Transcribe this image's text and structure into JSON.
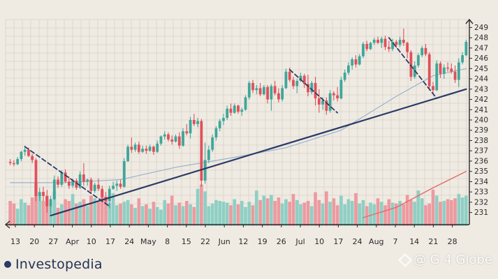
{
  "chart_data": {
    "type": "candlestick",
    "x_tick_labels": [
      "13",
      "20",
      "27",
      "Apr",
      "10",
      "17",
      "24",
      "May",
      "8",
      "15",
      "22",
      "Jun",
      "12",
      "19",
      "26",
      "Jul",
      "10",
      "17",
      "24",
      "Aug",
      "7",
      "14",
      "21",
      "28"
    ],
    "y_tick_labels": [
      "231",
      "232",
      "233",
      "234",
      "235",
      "236",
      "237",
      "238",
      "239",
      "240",
      "241",
      "242",
      "243",
      "244",
      "245",
      "246",
      "247",
      "248",
      "249"
    ],
    "ylim": [
      230.5,
      249.5
    ],
    "grid": true,
    "colors": {
      "background": "#efebe3",
      "grid": "#d9d2c7",
      "up": "#3fa69a",
      "down": "#e0505a",
      "volume_up": "#8fcfc4",
      "volume_down": "#ec9aa0",
      "trendline": "#2b3a66",
      "ma_slow": "#e46a6a",
      "ma_fast": "#9ab2cc",
      "axis": "#2b2b2b"
    },
    "candles": [
      {
        "o": 235.9,
        "h": 236.2,
        "l": 235.6,
        "c": 235.8
      },
      {
        "o": 235.8,
        "h": 236.1,
        "l": 235.5,
        "c": 235.7
      },
      {
        "o": 235.7,
        "h": 236.4,
        "l": 235.6,
        "c": 236.2
      },
      {
        "o": 236.2,
        "h": 237.0,
        "l": 236.0,
        "c": 236.9
      },
      {
        "o": 236.9,
        "h": 237.5,
        "l": 236.5,
        "c": 237.1
      },
      {
        "o": 237.1,
        "h": 237.3,
        "l": 236.4,
        "c": 236.5
      },
      {
        "o": 236.5,
        "h": 236.7,
        "l": 235.8,
        "c": 236.1
      },
      {
        "o": 236.1,
        "h": 236.3,
        "l": 232.1,
        "c": 232.6
      },
      {
        "o": 232.6,
        "h": 233.4,
        "l": 232.1,
        "c": 233.0
      },
      {
        "o": 233.0,
        "h": 233.5,
        "l": 232.1,
        "c": 232.6
      },
      {
        "o": 232.6,
        "h": 233.2,
        "l": 231.0,
        "c": 231.6
      },
      {
        "o": 231.6,
        "h": 232.6,
        "l": 230.9,
        "c": 232.3
      },
      {
        "o": 232.3,
        "h": 234.6,
        "l": 232.2,
        "c": 234.2
      },
      {
        "o": 234.2,
        "h": 234.5,
        "l": 233.4,
        "c": 233.7
      },
      {
        "o": 233.7,
        "h": 235.1,
        "l": 233.5,
        "c": 234.9
      },
      {
        "o": 234.9,
        "h": 235.2,
        "l": 233.9,
        "c": 234.0
      },
      {
        "o": 234.0,
        "h": 234.5,
        "l": 233.3,
        "c": 233.6
      },
      {
        "o": 233.6,
        "h": 234.3,
        "l": 233.4,
        "c": 234.1
      },
      {
        "o": 234.1,
        "h": 234.3,
        "l": 233.2,
        "c": 233.4
      },
      {
        "o": 233.4,
        "h": 235.0,
        "l": 233.3,
        "c": 234.7
      },
      {
        "o": 234.7,
        "h": 235.8,
        "l": 233.6,
        "c": 234.0
      },
      {
        "o": 234.0,
        "h": 234.3,
        "l": 233.6,
        "c": 234.2
      },
      {
        "o": 234.2,
        "h": 234.4,
        "l": 232.8,
        "c": 233.1
      },
      {
        "o": 233.1,
        "h": 233.9,
        "l": 232.9,
        "c": 233.7
      },
      {
        "o": 233.7,
        "h": 234.3,
        "l": 233.1,
        "c": 233.3
      },
      {
        "o": 233.3,
        "h": 233.6,
        "l": 232.2,
        "c": 232.5
      },
      {
        "o": 232.5,
        "h": 233.0,
        "l": 231.9,
        "c": 232.1
      },
      {
        "o": 232.1,
        "h": 233.6,
        "l": 231.4,
        "c": 233.3
      },
      {
        "o": 233.3,
        "h": 234.0,
        "l": 233.2,
        "c": 233.6
      },
      {
        "o": 233.6,
        "h": 234.1,
        "l": 233.1,
        "c": 233.8
      },
      {
        "o": 233.8,
        "h": 234.2,
        "l": 233.3,
        "c": 233.5
      },
      {
        "o": 233.5,
        "h": 236.3,
        "l": 233.4,
        "c": 236.0
      },
      {
        "o": 236.0,
        "h": 237.6,
        "l": 235.9,
        "c": 237.4
      },
      {
        "o": 237.4,
        "h": 238.3,
        "l": 236.8,
        "c": 237.1
      },
      {
        "o": 237.1,
        "h": 237.8,
        "l": 236.9,
        "c": 237.6
      },
      {
        "o": 237.6,
        "h": 237.9,
        "l": 236.7,
        "c": 236.9
      },
      {
        "o": 236.9,
        "h": 237.5,
        "l": 236.8,
        "c": 237.2
      },
      {
        "o": 237.2,
        "h": 237.5,
        "l": 236.7,
        "c": 237.0
      },
      {
        "o": 237.0,
        "h": 237.6,
        "l": 236.9,
        "c": 237.4
      },
      {
        "o": 237.4,
        "h": 237.5,
        "l": 236.6,
        "c": 236.9
      },
      {
        "o": 236.9,
        "h": 238.0,
        "l": 236.8,
        "c": 237.7
      },
      {
        "o": 237.7,
        "h": 238.5,
        "l": 237.5,
        "c": 238.4
      },
      {
        "o": 238.4,
        "h": 238.9,
        "l": 238.1,
        "c": 238.6
      },
      {
        "o": 238.6,
        "h": 238.8,
        "l": 237.9,
        "c": 238.1
      },
      {
        "o": 238.1,
        "h": 238.5,
        "l": 237.6,
        "c": 237.9
      },
      {
        "o": 237.9,
        "h": 238.6,
        "l": 237.8,
        "c": 238.4
      },
      {
        "o": 238.4,
        "h": 238.8,
        "l": 237.2,
        "c": 237.5
      },
      {
        "o": 237.5,
        "h": 239.2,
        "l": 237.4,
        "c": 238.9
      },
      {
        "o": 238.9,
        "h": 239.6,
        "l": 238.5,
        "c": 238.7
      },
      {
        "o": 238.7,
        "h": 240.3,
        "l": 238.2,
        "c": 240.0
      },
      {
        "o": 240.0,
        "h": 240.6,
        "l": 239.4,
        "c": 239.6
      },
      {
        "o": 239.6,
        "h": 240.2,
        "l": 239.3,
        "c": 239.9
      },
      {
        "o": 239.9,
        "h": 240.1,
        "l": 233.5,
        "c": 234.1
      },
      {
        "o": 234.1,
        "h": 237.8,
        "l": 233.8,
        "c": 236.1
      },
      {
        "o": 236.1,
        "h": 237.5,
        "l": 235.8,
        "c": 237.1
      },
      {
        "o": 237.1,
        "h": 238.6,
        "l": 236.9,
        "c": 238.3
      },
      {
        "o": 238.3,
        "h": 239.4,
        "l": 238.0,
        "c": 239.2
      },
      {
        "o": 239.2,
        "h": 240.1,
        "l": 238.9,
        "c": 239.9
      },
      {
        "o": 239.9,
        "h": 240.6,
        "l": 239.5,
        "c": 240.2
      },
      {
        "o": 240.2,
        "h": 241.4,
        "l": 240.0,
        "c": 241.1
      },
      {
        "o": 241.1,
        "h": 241.6,
        "l": 240.4,
        "c": 240.7
      },
      {
        "o": 240.7,
        "h": 241.6,
        "l": 240.6,
        "c": 241.4
      },
      {
        "o": 241.4,
        "h": 241.5,
        "l": 240.6,
        "c": 240.8
      },
      {
        "o": 240.8,
        "h": 241.2,
        "l": 240.4,
        "c": 241.0
      },
      {
        "o": 241.0,
        "h": 242.4,
        "l": 240.9,
        "c": 242.2
      },
      {
        "o": 242.2,
        "h": 243.8,
        "l": 242.0,
        "c": 243.6
      },
      {
        "o": 243.6,
        "h": 243.9,
        "l": 242.6,
        "c": 242.9
      },
      {
        "o": 242.9,
        "h": 243.4,
        "l": 242.5,
        "c": 243.1
      },
      {
        "o": 243.1,
        "h": 243.6,
        "l": 242.3,
        "c": 242.5
      },
      {
        "o": 242.5,
        "h": 243.4,
        "l": 242.4,
        "c": 243.2
      },
      {
        "o": 243.2,
        "h": 243.4,
        "l": 241.6,
        "c": 242.0
      },
      {
        "o": 242.0,
        "h": 243.5,
        "l": 240.9,
        "c": 243.3
      },
      {
        "o": 243.3,
        "h": 243.8,
        "l": 242.4,
        "c": 242.6
      },
      {
        "o": 242.6,
        "h": 243.1,
        "l": 241.7,
        "c": 242.0
      },
      {
        "o": 242.0,
        "h": 243.4,
        "l": 241.8,
        "c": 243.1
      },
      {
        "o": 243.1,
        "h": 245.0,
        "l": 243.0,
        "c": 244.7
      },
      {
        "o": 244.7,
        "h": 245.1,
        "l": 243.7,
        "c": 243.9
      },
      {
        "o": 243.9,
        "h": 244.2,
        "l": 243.0,
        "c": 243.3
      },
      {
        "o": 243.3,
        "h": 244.0,
        "l": 242.6,
        "c": 243.8
      },
      {
        "o": 243.8,
        "h": 244.6,
        "l": 243.7,
        "c": 244.3
      },
      {
        "o": 244.3,
        "h": 244.5,
        "l": 243.1,
        "c": 243.5
      },
      {
        "o": 243.5,
        "h": 244.4,
        "l": 242.3,
        "c": 242.7
      },
      {
        "o": 242.7,
        "h": 243.8,
        "l": 242.5,
        "c": 243.6
      },
      {
        "o": 243.6,
        "h": 244.2,
        "l": 241.4,
        "c": 242.1
      },
      {
        "o": 242.1,
        "h": 243.0,
        "l": 240.7,
        "c": 241.5
      },
      {
        "o": 241.5,
        "h": 242.2,
        "l": 241.0,
        "c": 241.9
      },
      {
        "o": 241.9,
        "h": 242.2,
        "l": 240.5,
        "c": 240.9
      },
      {
        "o": 240.9,
        "h": 242.9,
        "l": 240.7,
        "c": 242.6
      },
      {
        "o": 242.6,
        "h": 242.8,
        "l": 241.9,
        "c": 242.4
      },
      {
        "o": 242.4,
        "h": 243.2,
        "l": 241.8,
        "c": 242.1
      },
      {
        "o": 242.1,
        "h": 244.2,
        "l": 242.0,
        "c": 243.9
      },
      {
        "o": 243.9,
        "h": 244.9,
        "l": 243.7,
        "c": 244.6
      },
      {
        "o": 244.6,
        "h": 245.6,
        "l": 244.4,
        "c": 245.3
      },
      {
        "o": 245.3,
        "h": 246.1,
        "l": 244.9,
        "c": 245.9
      },
      {
        "o": 245.9,
        "h": 246.3,
        "l": 245.1,
        "c": 245.4
      },
      {
        "o": 245.4,
        "h": 246.4,
        "l": 245.3,
        "c": 246.2
      },
      {
        "o": 246.2,
        "h": 247.6,
        "l": 246.0,
        "c": 247.4
      },
      {
        "o": 247.4,
        "h": 247.7,
        "l": 246.7,
        "c": 246.9
      },
      {
        "o": 246.9,
        "h": 247.6,
        "l": 246.8,
        "c": 247.5
      },
      {
        "o": 247.5,
        "h": 248.0,
        "l": 247.3,
        "c": 247.8
      },
      {
        "o": 247.8,
        "h": 248.1,
        "l": 247.4,
        "c": 247.5
      },
      {
        "o": 247.5,
        "h": 248.1,
        "l": 247.0,
        "c": 247.9
      },
      {
        "o": 247.9,
        "h": 248.2,
        "l": 246.8,
        "c": 247.1
      },
      {
        "o": 247.1,
        "h": 247.7,
        "l": 246.6,
        "c": 246.9
      },
      {
        "o": 246.9,
        "h": 247.9,
        "l": 246.7,
        "c": 247.6
      },
      {
        "o": 247.6,
        "h": 247.8,
        "l": 247.0,
        "c": 247.3
      },
      {
        "o": 247.3,
        "h": 248.1,
        "l": 247.1,
        "c": 247.8
      },
      {
        "o": 247.8,
        "h": 248.9,
        "l": 247.2,
        "c": 247.5
      },
      {
        "o": 247.5,
        "h": 247.6,
        "l": 246.0,
        "c": 246.6
      },
      {
        "o": 246.6,
        "h": 246.8,
        "l": 243.8,
        "c": 244.2
      },
      {
        "o": 244.2,
        "h": 245.7,
        "l": 244.0,
        "c": 245.3
      },
      {
        "o": 245.3,
        "h": 246.5,
        "l": 245.1,
        "c": 246.3
      },
      {
        "o": 246.3,
        "h": 247.2,
        "l": 246.1,
        "c": 247.0
      },
      {
        "o": 247.0,
        "h": 247.4,
        "l": 246.2,
        "c": 246.4
      },
      {
        "o": 246.4,
        "h": 246.6,
        "l": 242.9,
        "c": 243.3
      },
      {
        "o": 243.3,
        "h": 243.7,
        "l": 242.6,
        "c": 242.9
      },
      {
        "o": 242.9,
        "h": 245.8,
        "l": 242.8,
        "c": 245.5
      },
      {
        "o": 245.5,
        "h": 245.7,
        "l": 244.1,
        "c": 244.5
      },
      {
        "o": 244.5,
        "h": 245.4,
        "l": 244.0,
        "c": 245.1
      },
      {
        "o": 245.1,
        "h": 245.6,
        "l": 244.7,
        "c": 245.0
      },
      {
        "o": 245.0,
        "h": 245.5,
        "l": 244.5,
        "c": 244.7
      },
      {
        "o": 244.7,
        "h": 245.3,
        "l": 243.6,
        "c": 243.9
      },
      {
        "o": 243.9,
        "h": 246.0,
        "l": 243.2,
        "c": 245.6
      },
      {
        "o": 245.6,
        "h": 246.6,
        "l": 245.4,
        "c": 246.3
      },
      {
        "o": 246.3,
        "h": 247.8,
        "l": 246.2,
        "c": 247.6
      }
    ],
    "volumes": [
      0.58,
      0.52,
      0.4,
      0.62,
      0.54,
      0.48,
      0.66,
      1.0,
      0.72,
      0.58,
      0.7,
      0.46,
      0.8,
      0.42,
      0.5,
      0.62,
      0.58,
      0.74,
      0.52,
      0.56,
      0.62,
      0.46,
      0.7,
      0.64,
      0.56,
      0.82,
      0.68,
      0.54,
      0.76,
      0.48,
      0.52,
      0.56,
      0.6,
      0.5,
      0.42,
      0.64,
      0.46,
      0.5,
      0.4,
      0.56,
      0.44,
      0.38,
      0.6,
      0.52,
      0.7,
      0.48,
      0.54,
      0.46,
      0.58,
      0.5,
      0.44,
      0.86,
      0.96,
      0.8,
      0.46,
      0.52,
      0.6,
      0.58,
      0.56,
      0.54,
      0.48,
      0.62,
      0.5,
      0.58,
      0.44,
      0.56,
      0.48,
      0.82,
      0.6,
      0.7,
      0.64,
      0.72,
      0.58,
      0.66,
      0.52,
      0.62,
      0.56,
      0.74,
      0.6,
      0.5,
      0.54,
      0.58,
      0.46,
      0.78,
      0.6,
      0.52,
      0.8,
      0.56,
      0.64,
      0.48,
      0.7,
      0.5,
      0.62,
      0.58,
      0.76,
      0.52,
      0.6,
      0.46,
      0.54,
      0.5,
      0.64,
      0.56,
      0.48,
      0.62,
      0.54,
      0.52,
      0.58,
      0.5,
      0.72,
      0.6,
      0.56,
      0.82,
      0.64,
      0.48,
      0.52,
      0.84,
      0.7,
      0.56,
      0.58,
      0.62,
      0.6,
      0.64,
      0.74,
      0.66,
      0.7
    ],
    "overlays": {
      "ma_fast": [
        [
          0,
          233.9
        ],
        [
          15,
          233.9
        ],
        [
          30,
          234.2
        ],
        [
          45,
          235.4
        ],
        [
          60,
          236.3
        ],
        [
          75,
          237.3
        ],
        [
          90,
          239.0
        ],
        [
          105,
          242.3
        ],
        [
          115,
          244.3
        ],
        [
          124,
          245.0
        ]
      ],
      "ma_slow": [
        [
          96,
          230.5
        ],
        [
          105,
          231.5
        ],
        [
          115,
          233.4
        ],
        [
          124,
          235.0
        ]
      ]
    },
    "trendlines": [
      {
        "style": "solid",
        "points": [
          [
            11,
            230.7
          ],
          [
            124,
            243.0
          ]
        ]
      },
      {
        "style": "dashed",
        "points": [
          [
            4,
            237.4
          ],
          [
            27,
            231.6
          ]
        ]
      },
      {
        "style": "dashed",
        "points": [
          [
            76,
            244.9
          ],
          [
            89,
            240.7
          ]
        ]
      },
      {
        "style": "dashed",
        "points": [
          [
            103,
            248.0
          ],
          [
            116,
            242.1
          ]
        ]
      }
    ]
  },
  "brand": {
    "name": "Investopedia"
  },
  "watermark": {
    "text": "@ G 4 Globe"
  }
}
